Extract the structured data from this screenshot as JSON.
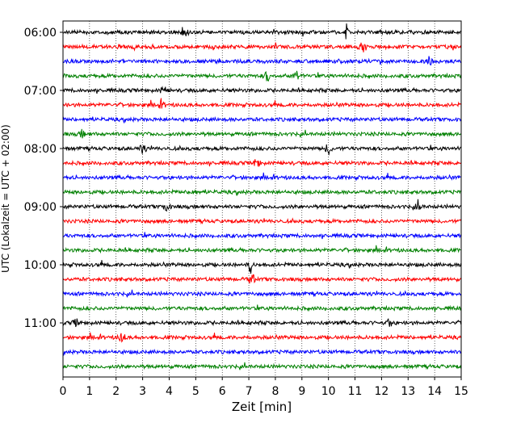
{
  "chart_data": {
    "type": "line",
    "title": "",
    "xlabel": "Zeit  [min]",
    "ylabel": "UTC (Lokalzeit = UTC + 02:00)",
    "xlim": [
      0,
      15
    ],
    "x_ticks": [
      "0",
      "1",
      "2",
      "3",
      "4",
      "5",
      "6",
      "7",
      "8",
      "9",
      "10",
      "11",
      "12",
      "13",
      "14",
      "15"
    ],
    "y_ticks": [
      "06:00",
      "07:00",
      "08:00",
      "09:00",
      "10:00",
      "11:00"
    ],
    "row_interval_minutes": 15,
    "start_time": "06:00",
    "grid": "vertical-dotted",
    "trace_colors": [
      "#000000",
      "#ff0000",
      "#0000ff",
      "#008000"
    ],
    "rows": [
      {
        "time": "06:00",
        "color": "#000000",
        "events": [
          {
            "t": 4.6,
            "amp": 5
          },
          {
            "t": 10.7,
            "amp": 12
          }
        ]
      },
      {
        "time": "06:15",
        "color": "#ff0000",
        "events": [
          {
            "t": 11.3,
            "amp": 5
          }
        ]
      },
      {
        "time": "06:30",
        "color": "#0000ff",
        "events": [
          {
            "t": 13.8,
            "amp": 5
          }
        ]
      },
      {
        "time": "06:45",
        "color": "#008000",
        "events": [
          {
            "t": 7.7,
            "amp": 6
          },
          {
            "t": 8.8,
            "amp": 6
          }
        ]
      },
      {
        "time": "07:00",
        "color": "#000000",
        "events": [
          {
            "t": 3.8,
            "amp": 4
          }
        ]
      },
      {
        "time": "07:15",
        "color": "#ff0000",
        "events": [
          {
            "t": 3.7,
            "amp": 4
          }
        ]
      },
      {
        "time": "07:30",
        "color": "#0000ff",
        "events": []
      },
      {
        "time": "07:45",
        "color": "#008000",
        "events": [
          {
            "t": 0.7,
            "amp": 4
          }
        ]
      },
      {
        "time": "08:00",
        "color": "#000000",
        "events": [
          {
            "t": 3.0,
            "amp": 5
          },
          {
            "t": 10.0,
            "amp": 6
          }
        ]
      },
      {
        "time": "08:15",
        "color": "#ff0000",
        "events": [
          {
            "t": 7.3,
            "amp": 5
          }
        ]
      },
      {
        "time": "08:30",
        "color": "#0000ff",
        "events": []
      },
      {
        "time": "08:45",
        "color": "#008000",
        "events": [
          {
            "t": 4.9,
            "amp": 4
          }
        ]
      },
      {
        "time": "09:00",
        "color": "#000000",
        "events": [
          {
            "t": 3.9,
            "amp": 5
          },
          {
            "t": 13.4,
            "amp": 5
          }
        ]
      },
      {
        "time": "09:15",
        "color": "#ff0000",
        "events": []
      },
      {
        "time": "09:30",
        "color": "#0000ff",
        "events": []
      },
      {
        "time": "09:45",
        "color": "#008000",
        "events": []
      },
      {
        "time": "10:00",
        "color": "#000000",
        "events": [
          {
            "t": 7.05,
            "amp": 14
          }
        ]
      },
      {
        "time": "10:15",
        "color": "#ff0000",
        "events": [
          {
            "t": 7.1,
            "amp": 6
          }
        ]
      },
      {
        "time": "10:30",
        "color": "#0000ff",
        "events": []
      },
      {
        "time": "10:45",
        "color": "#008000",
        "events": []
      },
      {
        "time": "11:00",
        "color": "#000000",
        "events": [
          {
            "t": 0.5,
            "amp": 4
          },
          {
            "t": 12.3,
            "amp": 4
          }
        ]
      },
      {
        "time": "11:15",
        "color": "#ff0000",
        "events": [
          {
            "t": 2.2,
            "amp": 6
          }
        ]
      },
      {
        "time": "11:30",
        "color": "#0000ff",
        "events": []
      },
      {
        "time": "11:45",
        "color": "#008000",
        "events": []
      }
    ]
  }
}
